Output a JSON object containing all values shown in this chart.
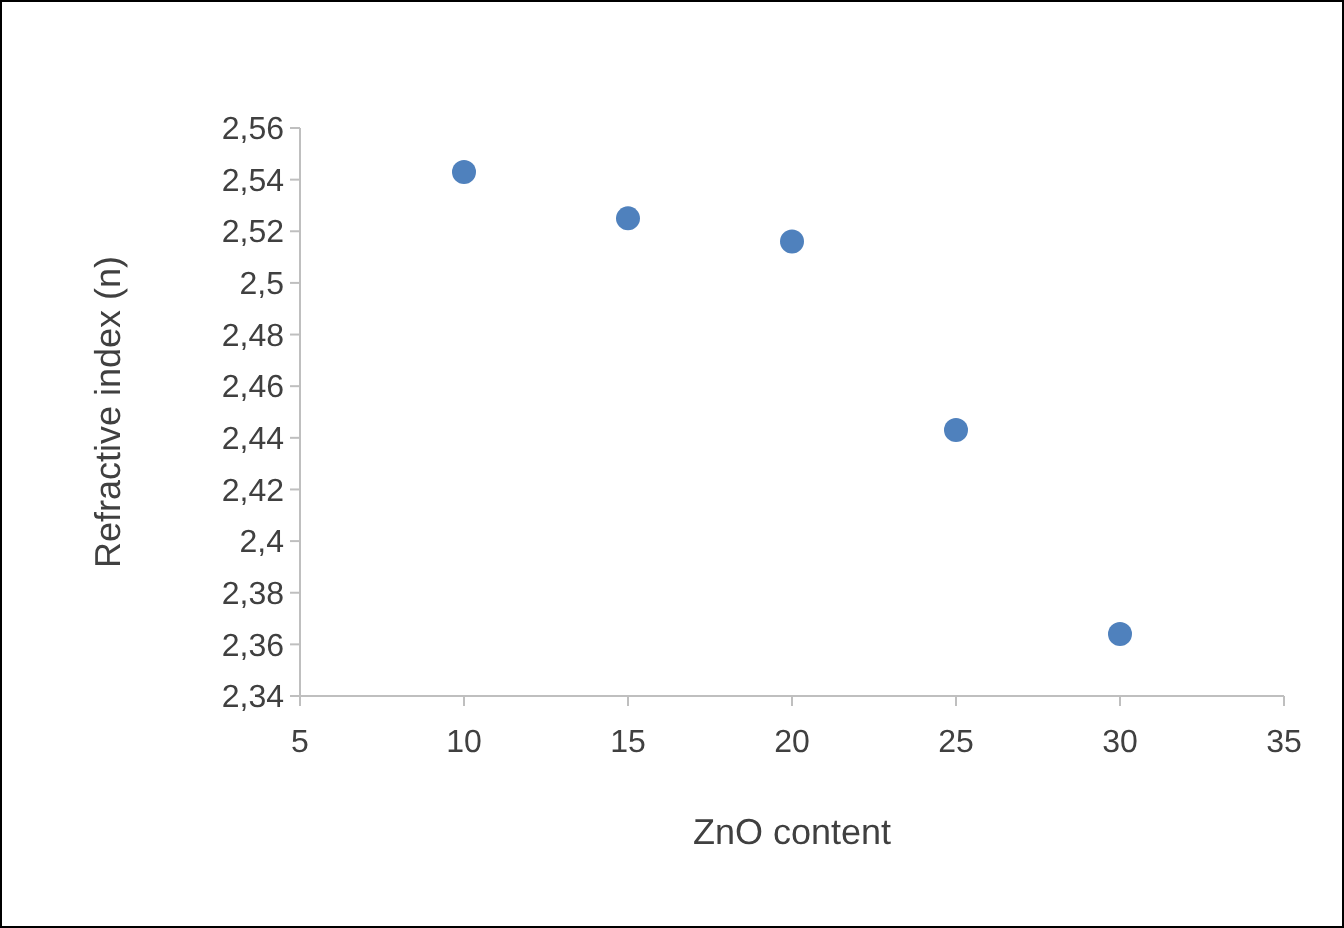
{
  "chart_data": {
    "type": "scatter",
    "xlabel": "ZnO content",
    "ylabel": "Refractive index (n)",
    "x": [
      10,
      15,
      20,
      25,
      30
    ],
    "series": [
      {
        "color": "#4f81bd",
        "values": [
          2.543,
          2.525,
          2.516,
          2.443,
          2.364
        ]
      }
    ],
    "xlim": [
      5,
      35
    ],
    "xticks": [
      5,
      10,
      15,
      20,
      25,
      30,
      35
    ],
    "ylim": [
      2.34,
      2.56
    ],
    "yticks": [
      {
        "value": 2.34,
        "label": "2,34"
      },
      {
        "value": 2.36,
        "label": "2,36"
      },
      {
        "value": 2.38,
        "label": "2,38"
      },
      {
        "value": 2.4,
        "label": "2,4"
      },
      {
        "value": 2.42,
        "label": "2,42"
      },
      {
        "value": 2.44,
        "label": "2,44"
      },
      {
        "value": 2.46,
        "label": "2,46"
      },
      {
        "value": 2.48,
        "label": "2,48"
      },
      {
        "value": 2.5,
        "label": "2,5"
      },
      {
        "value": 2.52,
        "label": "2,52"
      },
      {
        "value": 2.54,
        "label": "2,54"
      },
      {
        "value": 2.56,
        "label": "2,56"
      }
    ],
    "marker": "circle"
  }
}
